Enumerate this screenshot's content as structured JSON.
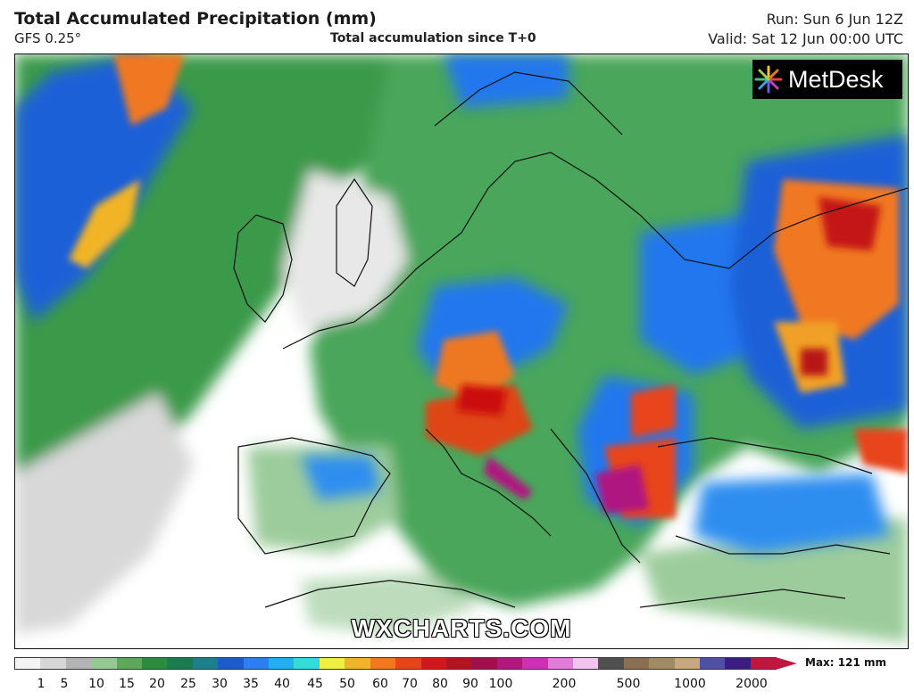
{
  "header": {
    "title": "Total Accumulated Precipitation (mm)",
    "model": "GFS 0.25°",
    "accumulation": "Total accumulation since T+0",
    "run": "Run: Sun 6 Jun 12Z",
    "valid": "Valid: Sat 12 Jun 00:00 UTC"
  },
  "logo": {
    "text": "MetDesk"
  },
  "watermark": "WXCHARTS.COM",
  "map": {
    "region": "Europe",
    "variable": "Total accumulated precipitation",
    "units": "mm",
    "colors": {
      "low": "#2e8b3e",
      "mid": "#2266ee",
      "high": "#ee8810",
      "max": "#cc1010",
      "extreme": "#b01880",
      "coast": "#111111"
    }
  },
  "scale": {
    "max_label": "Max: 121 mm",
    "ticks": [
      "1",
      "5",
      "10",
      "15",
      "20",
      "25",
      "30",
      "35",
      "40",
      "45",
      "50",
      "60",
      "70",
      "80",
      "90",
      "100",
      "200",
      "500",
      "1000",
      "2000"
    ],
    "colors": [
      "#f4f4f4",
      "#d7d7d7",
      "#b4b4b4",
      "#96c896",
      "#5aaa5a",
      "#2e8b3e",
      "#1e7a50",
      "#1e7f8a",
      "#1e5ac8",
      "#2e7ef0",
      "#22b0f0",
      "#30dcdc",
      "#f0f040",
      "#f0b428",
      "#f07820",
      "#e8441c",
      "#d21818",
      "#b41420",
      "#a0104a",
      "#b01880",
      "#cc30b4",
      "#e07ce0",
      "#f4c4f0",
      "#505050",
      "#8c6e50",
      "#a08c60",
      "#c8a87c",
      "#5050a0",
      "#3c1e82",
      "#c0163f"
    ]
  }
}
